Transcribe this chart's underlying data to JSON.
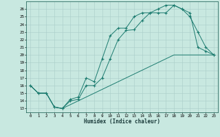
{
  "xlabel": "Humidex (Indice chaleur)",
  "xlim": [
    -0.5,
    23.5
  ],
  "ylim": [
    12.5,
    27.0
  ],
  "yticks": [
    13,
    14,
    15,
    16,
    17,
    18,
    19,
    20,
    21,
    22,
    23,
    24,
    25,
    26
  ],
  "xticks": [
    0,
    1,
    2,
    3,
    4,
    5,
    6,
    7,
    8,
    9,
    10,
    11,
    12,
    13,
    14,
    15,
    16,
    17,
    18,
    19,
    20,
    21,
    22,
    23
  ],
  "line_color": "#1a7a6e",
  "bg_color": "#c8e8e0",
  "grid_color": "#a8ccc8",
  "line1_x": [
    0,
    1,
    2,
    3,
    4,
    5,
    6,
    7,
    8,
    9,
    10,
    11,
    12,
    13,
    14,
    15,
    16,
    17,
    18,
    19,
    20,
    21,
    22,
    23
  ],
  "line1_y": [
    16,
    15,
    15,
    13.2,
    13,
    14,
    14.2,
    16,
    16,
    17,
    19.5,
    22,
    23.2,
    23.3,
    24.5,
    25.5,
    25.5,
    25.5,
    26.5,
    26,
    25,
    23,
    21,
    20
  ],
  "line2_x": [
    0,
    1,
    2,
    3,
    4,
    5,
    6,
    7,
    8,
    9,
    10,
    11,
    12,
    13,
    14,
    15,
    16,
    17,
    18,
    19,
    20,
    21,
    22,
    23
  ],
  "line2_y": [
    16,
    15,
    15,
    13.2,
    13,
    14.2,
    14.5,
    17,
    16.5,
    19.5,
    22.5,
    23.5,
    23.5,
    25,
    25.5,
    25.5,
    26,
    26.5,
    26.5,
    26,
    25.5,
    21,
    20.5,
    20
  ],
  "line3_x": [
    0,
    1,
    2,
    3,
    4,
    5,
    6,
    7,
    8,
    9,
    10,
    11,
    12,
    13,
    14,
    15,
    16,
    17,
    18,
    19,
    20,
    21,
    22,
    23
  ],
  "line3_y": [
    16,
    15,
    15,
    13.2,
    13,
    13.5,
    14,
    14.5,
    15,
    15.5,
    16,
    16.5,
    17,
    17.5,
    18,
    18.5,
    19,
    19.5,
    20,
    20,
    20,
    20,
    20,
    20
  ]
}
